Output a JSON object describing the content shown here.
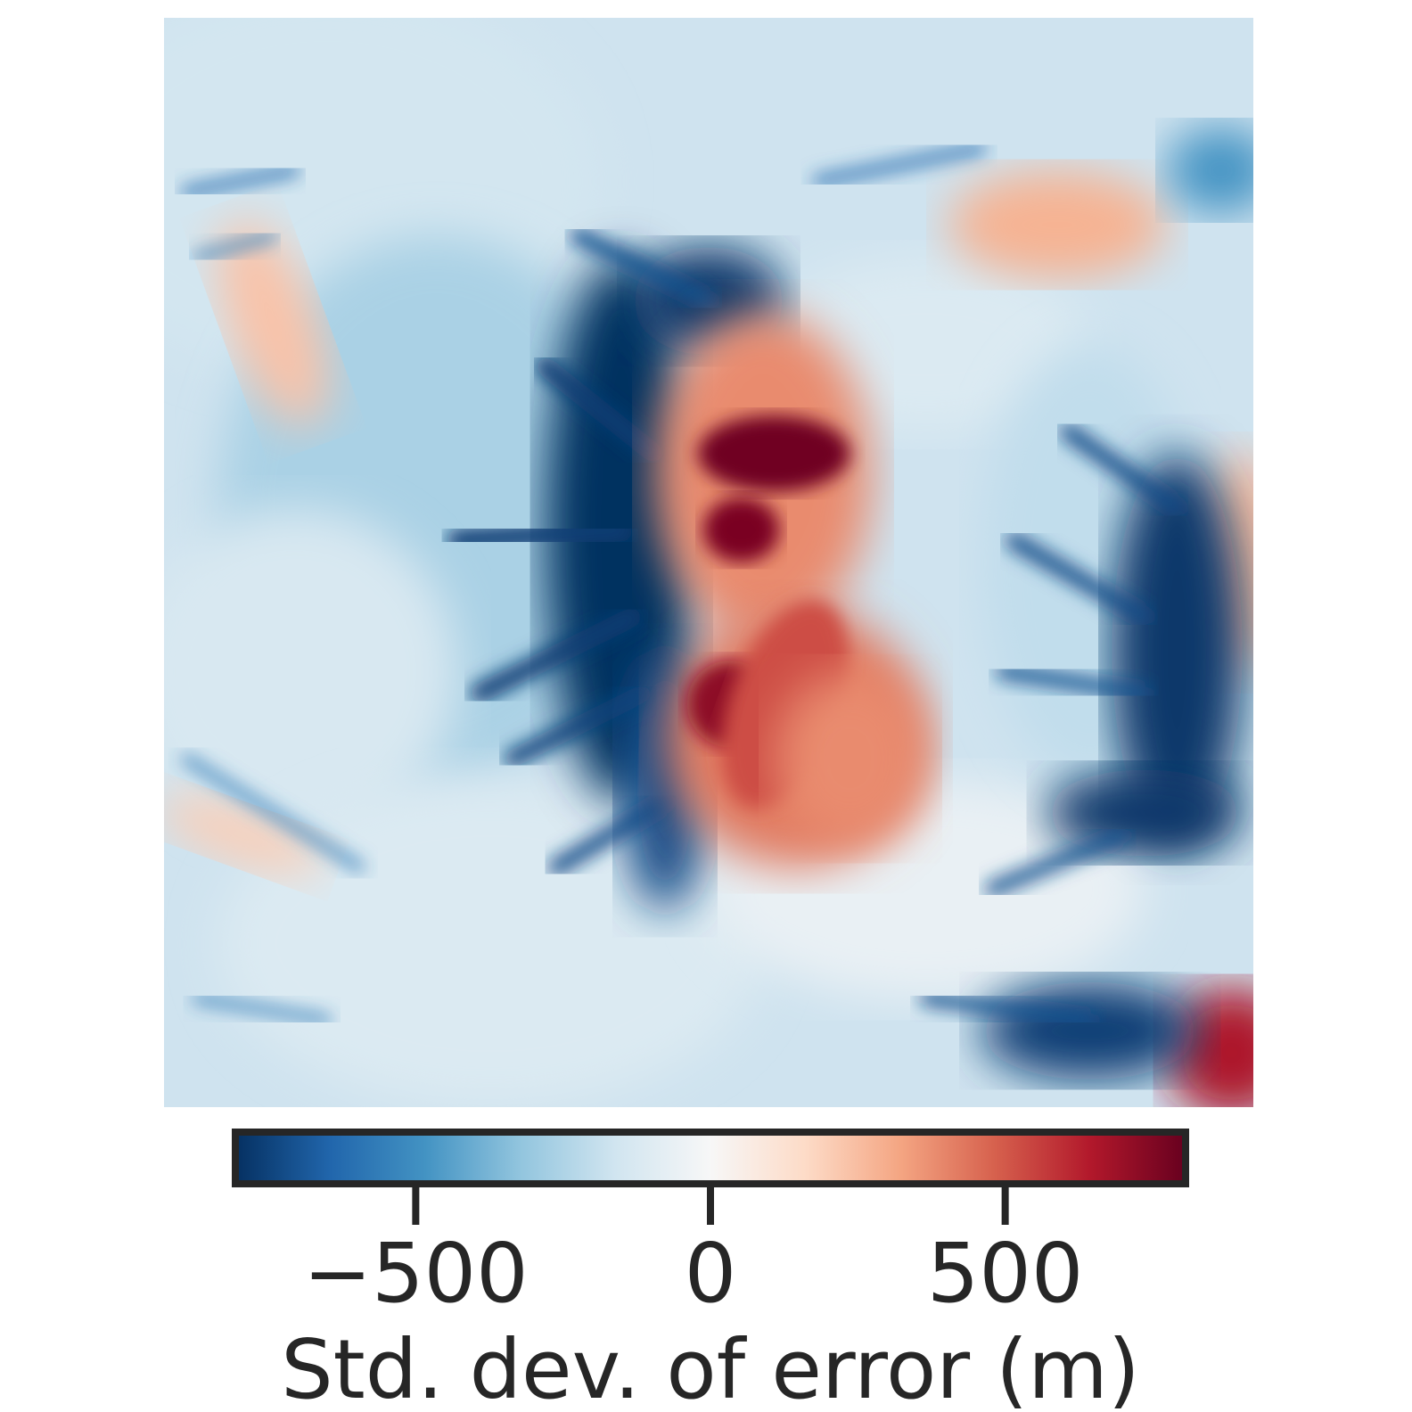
{
  "chart_data": {
    "type": "heatmap",
    "title": "",
    "xlabel": "",
    "ylabel": "",
    "axes_visible": false,
    "colormap": "RdBu_r",
    "colorbar": {
      "orientation": "horizontal",
      "placement": "bottom",
      "label": "Std. dev. of error (m)",
      "range": [
        -800,
        800
      ],
      "ticks": [
        -500,
        0,
        500
      ],
      "tick_labels": [
        "−500",
        "0",
        "500"
      ],
      "color_stops": [
        "#053061",
        "#2166ac",
        "#4393c3",
        "#92c5de",
        "#d1e5f0",
        "#f7f7f7",
        "#fddbc7",
        "#f4a582",
        "#d6604d",
        "#b2182b",
        "#67001f"
      ]
    },
    "field_features": [
      {
        "description": "central high-error ridge",
        "center": [
          0.55,
          0.45
        ],
        "value": 750
      },
      {
        "description": "upper central warm zone",
        "center": [
          0.54,
          0.4
        ],
        "value": 450
      },
      {
        "description": "lower central warm zone",
        "center": [
          0.56,
          0.65
        ],
        "value": 500
      },
      {
        "description": "upper right warm lobe",
        "center": [
          0.83,
          0.2
        ],
        "value": 300
      },
      {
        "description": "upper left warm strip",
        "center": [
          0.08,
          0.28
        ],
        "value": 220
      },
      {
        "description": "left warm strip",
        "center": [
          0.09,
          0.73
        ],
        "value": 200
      },
      {
        "description": "right edge warm patch",
        "center": [
          0.98,
          0.5
        ],
        "value": 260
      },
      {
        "description": "bottom right warm patch",
        "center": [
          0.97,
          0.95
        ],
        "value": 620
      },
      {
        "description": "dark blue channel system west of ridge",
        "center": [
          0.4,
          0.5
        ],
        "value": -780
      },
      {
        "description": "dark blue channel system east",
        "center": [
          0.92,
          0.62
        ],
        "value": -760
      },
      {
        "description": "dark blue channels bottom right",
        "center": [
          0.82,
          0.93
        ],
        "value": -720
      },
      {
        "description": "light blue background",
        "center": [
          0.2,
          0.5
        ],
        "value": -220
      }
    ]
  }
}
